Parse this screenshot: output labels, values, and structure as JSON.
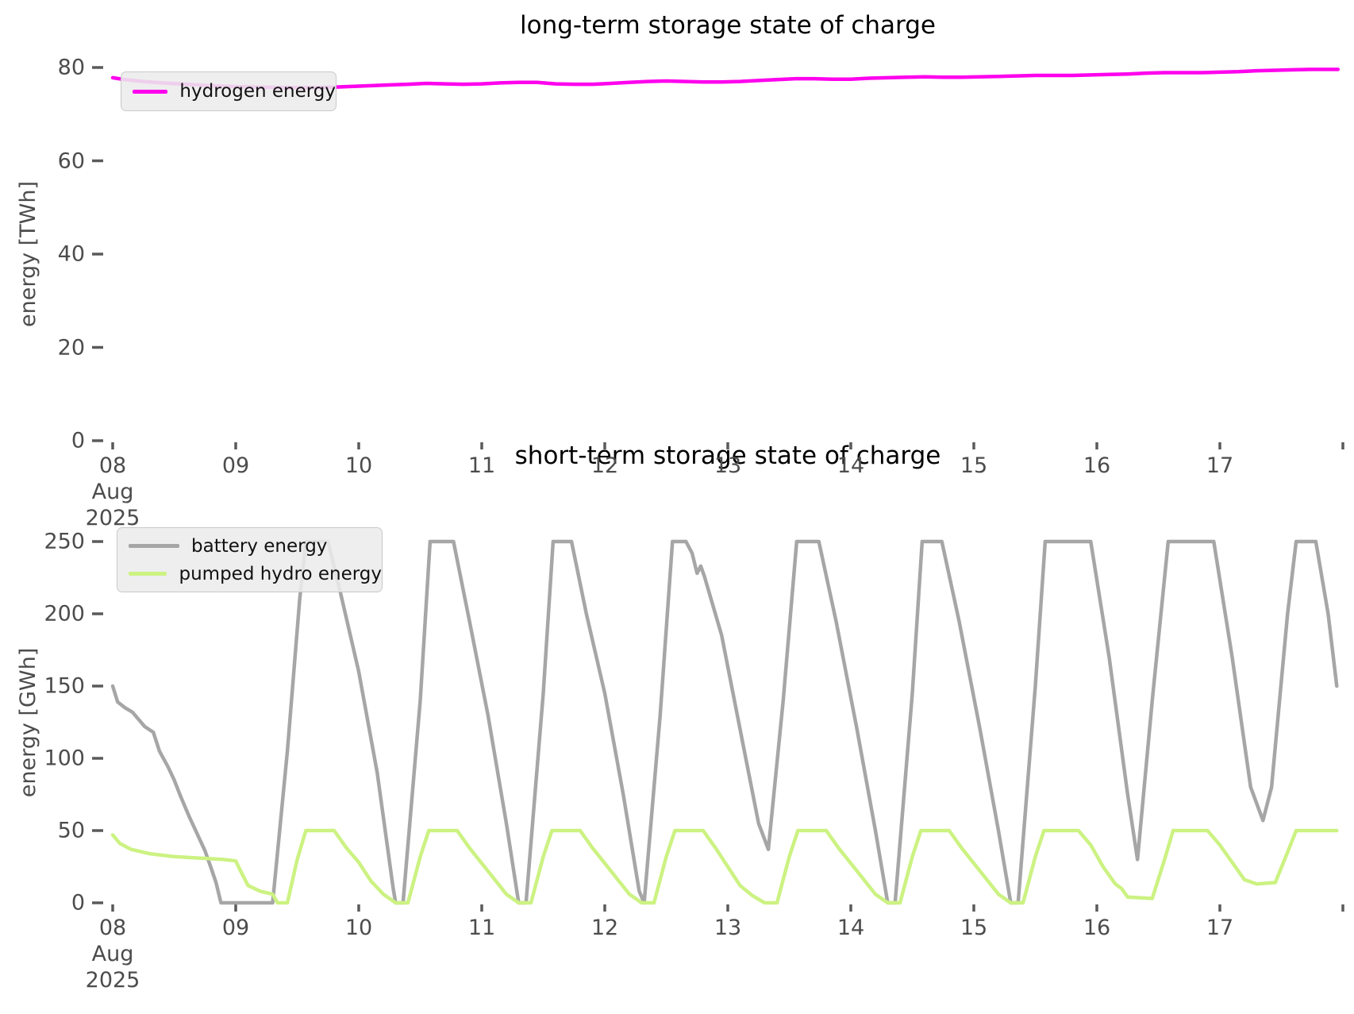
{
  "page_background": "#ffffff",
  "text_color_ticks": "#4c4c4c",
  "title_color": "#000000",
  "legend_background": "#ececec",
  "chart_data": [
    {
      "id": "long-term-storage",
      "type": "line",
      "title": "long-term storage state of charge",
      "ylabel": "energy [TWh]",
      "xlabel": "",
      "ylim": [
        0,
        80
      ],
      "x_axis": "date, August 2025, Aug 08 through Aug 18",
      "grid": false,
      "legend_position": "upper-left",
      "y_tick_values": [
        0,
        20,
        40,
        60,
        80
      ],
      "y_tick_labels": [
        "0",
        "20",
        "40",
        "60",
        "80"
      ],
      "x_tick_labels": [
        "08",
        "09",
        "10",
        "11",
        "12",
        "13",
        "14",
        "15",
        "16",
        "17",
        ""
      ],
      "x_first_tick_sublabels": [
        "Aug",
        "2025"
      ],
      "series": [
        {
          "name": "hydrogen energy",
          "color": "#ff00ee",
          "unit": "TWh",
          "points_day_value": [
            [
              0,
              77.8
            ],
            [
              0.1,
              77.4
            ],
            [
              0.25,
              77.0
            ],
            [
              0.4,
              76.7
            ],
            [
              0.6,
              76.4
            ],
            [
              0.8,
              76.1
            ],
            [
              1.0,
              75.9
            ],
            [
              1.2,
              75.8
            ],
            [
              1.4,
              75.7
            ],
            [
              1.6,
              75.7
            ],
            [
              1.8,
              75.8
            ],
            [
              2.0,
              76.0
            ],
            [
              2.2,
              76.2
            ],
            [
              2.4,
              76.4
            ],
            [
              2.55,
              76.6
            ],
            [
              2.7,
              76.5
            ],
            [
              2.85,
              76.4
            ],
            [
              3.0,
              76.5
            ],
            [
              3.15,
              76.7
            ],
            [
              3.3,
              76.8
            ],
            [
              3.45,
              76.8
            ],
            [
              3.6,
              76.5
            ],
            [
              3.75,
              76.4
            ],
            [
              3.9,
              76.4
            ],
            [
              4.05,
              76.6
            ],
            [
              4.2,
              76.8
            ],
            [
              4.35,
              77.0
            ],
            [
              4.5,
              77.1
            ],
            [
              4.65,
              77.0
            ],
            [
              4.8,
              76.9
            ],
            [
              4.95,
              76.9
            ],
            [
              5.1,
              77.0
            ],
            [
              5.25,
              77.2
            ],
            [
              5.4,
              77.4
            ],
            [
              5.55,
              77.6
            ],
            [
              5.7,
              77.6
            ],
            [
              5.85,
              77.5
            ],
            [
              6.0,
              77.5
            ],
            [
              6.15,
              77.7
            ],
            [
              6.3,
              77.8
            ],
            [
              6.45,
              77.9
            ],
            [
              6.6,
              78.0
            ],
            [
              6.75,
              77.9
            ],
            [
              6.9,
              77.9
            ],
            [
              7.05,
              78.0
            ],
            [
              7.2,
              78.1
            ],
            [
              7.35,
              78.2
            ],
            [
              7.5,
              78.3
            ],
            [
              7.65,
              78.3
            ],
            [
              7.8,
              78.3
            ],
            [
              7.95,
              78.4
            ],
            [
              8.1,
              78.5
            ],
            [
              8.25,
              78.6
            ],
            [
              8.4,
              78.8
            ],
            [
              8.55,
              78.9
            ],
            [
              8.7,
              78.9
            ],
            [
              8.85,
              78.9
            ],
            [
              9.0,
              79.0
            ],
            [
              9.15,
              79.1
            ],
            [
              9.3,
              79.3
            ],
            [
              9.45,
              79.4
            ],
            [
              9.6,
              79.5
            ],
            [
              9.75,
              79.6
            ],
            [
              9.9,
              79.6
            ],
            [
              9.96,
              79.6
            ]
          ]
        }
      ]
    },
    {
      "id": "short-term-storage",
      "type": "line",
      "title": "short-term storage state of charge",
      "ylabel": "energy [GWh]",
      "xlabel": "",
      "ylim": [
        0,
        250
      ],
      "x_axis": "date, August 2025, Aug 08 through Aug 18",
      "grid": false,
      "legend_position": "upper-left",
      "y_tick_values": [
        0,
        50,
        100,
        150,
        200,
        250
      ],
      "y_tick_labels": [
        "0",
        "50",
        "100",
        "150",
        "200",
        "250"
      ],
      "x_tick_labels": [
        "08",
        "09",
        "10",
        "11",
        "12",
        "13",
        "14",
        "15",
        "16",
        "17",
        ""
      ],
      "x_first_tick_sublabels": [
        "Aug",
        "2025"
      ],
      "series": [
        {
          "name": "battery energy",
          "color": "#a6a6a6",
          "unit": "GWh",
          "points_day_value": [
            [
              0,
              150
            ],
            [
              0.04,
              139
            ],
            [
              0.1,
              135
            ],
            [
              0.16,
              132
            ],
            [
              0.22,
              126
            ],
            [
              0.26,
              122
            ],
            [
              0.33,
              118
            ],
            [
              0.38,
              105
            ],
            [
              0.45,
              94
            ],
            [
              0.5,
              85
            ],
            [
              0.55,
              74
            ],
            [
              0.62,
              60
            ],
            [
              0.68,
              49
            ],
            [
              0.75,
              36
            ],
            [
              0.8,
              24
            ],
            [
              0.84,
              14
            ],
            [
              0.88,
              0
            ],
            [
              1.3,
              0
            ],
            [
              1.42,
              105
            ],
            [
              1.52,
              210
            ],
            [
              1.57,
              250
            ],
            [
              1.75,
              250
            ],
            [
              1.85,
              215
            ],
            [
              2.0,
              160
            ],
            [
              2.15,
              90
            ],
            [
              2.28,
              10
            ],
            [
              2.3,
              0
            ],
            [
              2.36,
              0
            ],
            [
              2.5,
              140
            ],
            [
              2.58,
              250
            ],
            [
              2.77,
              250
            ],
            [
              2.9,
              195
            ],
            [
              3.05,
              130
            ],
            [
              3.2,
              55
            ],
            [
              3.3,
              0
            ],
            [
              3.36,
              0
            ],
            [
              3.5,
              145
            ],
            [
              3.58,
              250
            ],
            [
              3.73,
              250
            ],
            [
              3.85,
              200
            ],
            [
              4.0,
              145
            ],
            [
              4.15,
              75
            ],
            [
              4.28,
              8
            ],
            [
              4.32,
              0
            ],
            [
              4.45,
              130
            ],
            [
              4.55,
              250
            ],
            [
              4.66,
              250
            ],
            [
              4.71,
              242
            ],
            [
              4.75,
              228
            ],
            [
              4.78,
              233
            ],
            [
              4.81,
              226
            ],
            [
              4.95,
              185
            ],
            [
              5.1,
              120
            ],
            [
              5.25,
              55
            ],
            [
              5.33,
              37
            ],
            [
              5.45,
              140
            ],
            [
              5.56,
              250
            ],
            [
              5.74,
              250
            ],
            [
              5.88,
              195
            ],
            [
              6.05,
              120
            ],
            [
              6.2,
              50
            ],
            [
              6.3,
              0
            ],
            [
              6.36,
              0
            ],
            [
              6.5,
              145
            ],
            [
              6.58,
              250
            ],
            [
              6.74,
              250
            ],
            [
              6.88,
              195
            ],
            [
              7.05,
              120
            ],
            [
              7.2,
              50
            ],
            [
              7.3,
              0
            ],
            [
              7.36,
              0
            ],
            [
              7.5,
              150
            ],
            [
              7.58,
              250
            ],
            [
              7.95,
              250
            ],
            [
              8.1,
              170
            ],
            [
              8.25,
              75
            ],
            [
              8.33,
              30
            ],
            [
              8.45,
              140
            ],
            [
              8.58,
              250
            ],
            [
              8.95,
              250
            ],
            [
              9.1,
              170
            ],
            [
              9.25,
              80
            ],
            [
              9.35,
              57
            ],
            [
              9.42,
              80
            ],
            [
              9.55,
              200
            ],
            [
              9.62,
              250
            ],
            [
              9.78,
              250
            ],
            [
              9.88,
              200
            ],
            [
              9.95,
              150
            ]
          ]
        },
        {
          "name": "pumped hydro energy",
          "color": "#ccf282",
          "unit": "GWh",
          "points_day_value": [
            [
              0,
              47
            ],
            [
              0.06,
              41
            ],
            [
              0.15,
              37
            ],
            [
              0.3,
              34
            ],
            [
              0.5,
              32
            ],
            [
              0.7,
              31
            ],
            [
              0.9,
              30
            ],
            [
              1.0,
              29
            ],
            [
              1.04,
              22
            ],
            [
              1.1,
              12
            ],
            [
              1.2,
              8
            ],
            [
              1.3,
              6
            ],
            [
              1.34,
              0
            ],
            [
              1.42,
              0
            ],
            [
              1.5,
              30
            ],
            [
              1.57,
              50
            ],
            [
              1.8,
              50
            ],
            [
              1.9,
              38
            ],
            [
              2.0,
              28
            ],
            [
              2.1,
              15
            ],
            [
              2.2,
              6
            ],
            [
              2.3,
              0
            ],
            [
              2.4,
              0
            ],
            [
              2.5,
              32
            ],
            [
              2.57,
              50
            ],
            [
              2.8,
              50
            ],
            [
              2.9,
              38
            ],
            [
              3.05,
              22
            ],
            [
              3.2,
              6
            ],
            [
              3.3,
              0
            ],
            [
              3.4,
              0
            ],
            [
              3.5,
              32
            ],
            [
              3.57,
              50
            ],
            [
              3.8,
              50
            ],
            [
              3.9,
              38
            ],
            [
              4.05,
              22
            ],
            [
              4.2,
              6
            ],
            [
              4.3,
              0
            ],
            [
              4.4,
              0
            ],
            [
              4.5,
              32
            ],
            [
              4.57,
              50
            ],
            [
              4.8,
              50
            ],
            [
              4.9,
              38
            ],
            [
              5.0,
              25
            ],
            [
              5.1,
              12
            ],
            [
              5.2,
              5
            ],
            [
              5.3,
              0
            ],
            [
              5.4,
              0
            ],
            [
              5.5,
              32
            ],
            [
              5.57,
              50
            ],
            [
              5.8,
              50
            ],
            [
              5.9,
              38
            ],
            [
              6.05,
              22
            ],
            [
              6.2,
              6
            ],
            [
              6.3,
              0
            ],
            [
              6.4,
              0
            ],
            [
              6.5,
              32
            ],
            [
              6.57,
              50
            ],
            [
              6.8,
              50
            ],
            [
              6.9,
              38
            ],
            [
              7.05,
              22
            ],
            [
              7.2,
              6
            ],
            [
              7.3,
              0
            ],
            [
              7.4,
              0
            ],
            [
              7.5,
              32
            ],
            [
              7.57,
              50
            ],
            [
              7.85,
              50
            ],
            [
              7.95,
              40
            ],
            [
              8.05,
              25
            ],
            [
              8.15,
              13
            ],
            [
              8.2,
              10
            ],
            [
              8.25,
              4
            ],
            [
              8.45,
              3
            ],
            [
              8.55,
              30
            ],
            [
              8.62,
              50
            ],
            [
              8.9,
              50
            ],
            [
              9.0,
              40
            ],
            [
              9.1,
              28
            ],
            [
              9.2,
              16
            ],
            [
              9.3,
              13
            ],
            [
              9.45,
              14
            ],
            [
              9.55,
              35
            ],
            [
              9.62,
              50
            ],
            [
              9.95,
              50
            ]
          ]
        }
      ]
    }
  ]
}
